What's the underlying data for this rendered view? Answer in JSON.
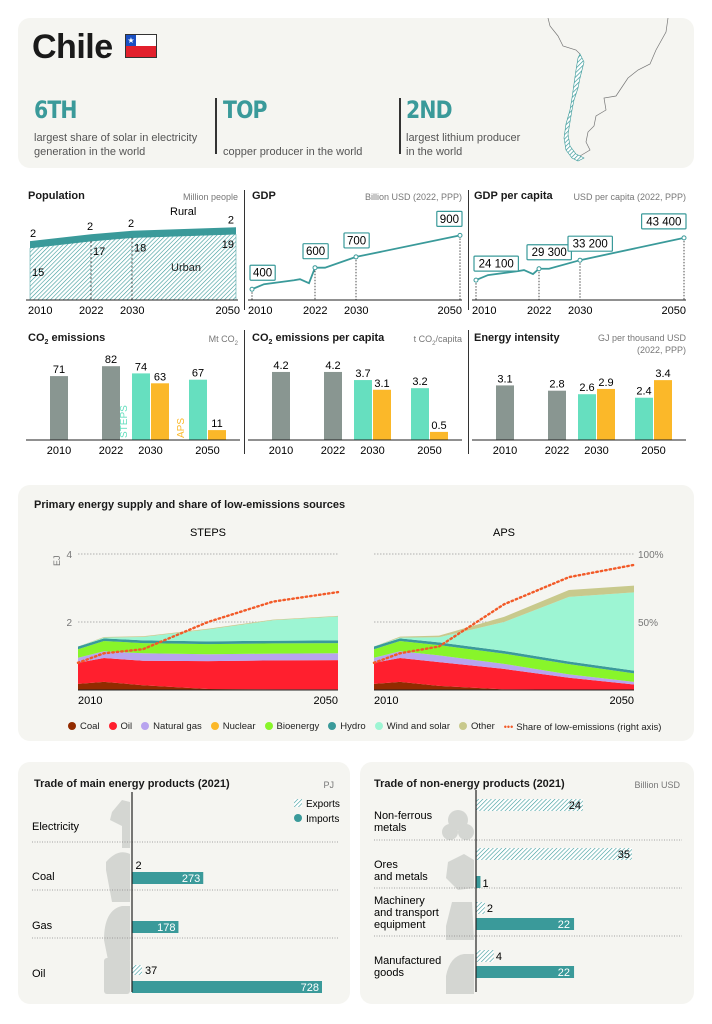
{
  "header": {
    "country": "Chile",
    "flag": "chile-flag",
    "stats": [
      {
        "rank": "6TH",
        "desc_line1": "largest share of solar in electricity",
        "desc_line2": "generation in the world"
      },
      {
        "rank": "TOP",
        "desc_line1": "",
        "desc_line2": "copper producer in the world"
      },
      {
        "rank": "2ND",
        "desc_line1": "largest lithium producer",
        "desc_line2": "in the world"
      }
    ]
  },
  "colors": {
    "teal": "#3a9a9a",
    "grey_bar": "#899691",
    "steps": "#66dfbf",
    "aps": "#fbb829",
    "coal": "#922b00",
    "oil": "#ff1f2e",
    "natural_gas": "#b8a4ef",
    "nuclear": "#fbb829",
    "bioenergy": "#88f52a",
    "hydro": "#3a9a9a",
    "wind_solar": "#9df5d3",
    "other": "#c8c98c",
    "share_line": "#f25a28"
  },
  "chart_data": [
    {
      "id": "population",
      "type": "area",
      "title": "Population",
      "unit": "Million people",
      "x": [
        "2010",
        "2022",
        "2030",
        "2050"
      ],
      "series": [
        {
          "name": "Urban",
          "values": [
            15,
            17,
            18,
            19
          ]
        },
        {
          "name": "Rural",
          "values": [
            2,
            2,
            2,
            2
          ]
        }
      ]
    },
    {
      "id": "gdp",
      "type": "line",
      "title": "GDP",
      "unit": "Billion USD (2022, PPP)",
      "x": [
        "2010",
        "2022",
        "2030",
        "2050"
      ],
      "values": [
        400,
        600,
        700,
        900
      ],
      "labels": [
        "400",
        "600",
        "700",
        "900"
      ]
    },
    {
      "id": "gdp_per_capita",
      "type": "line",
      "title": "GDP per capita",
      "unit": "USD per capita (2022, PPP)",
      "x": [
        "2010",
        "2022",
        "2030",
        "2050"
      ],
      "values": [
        24100,
        29300,
        33200,
        43400
      ],
      "labels": [
        "24 100",
        "29 300",
        "33 200",
        "43 400"
      ]
    },
    {
      "id": "co2",
      "type": "bar",
      "title": "CO2 emissions",
      "unit": "Mt CO2",
      "categories": [
        "2010",
        "2022",
        "2030",
        "2050"
      ],
      "series": [
        {
          "name": "Historical",
          "values": [
            71,
            82,
            null,
            null
          ]
        },
        {
          "name": "STEPS",
          "values": [
            null,
            null,
            74,
            67
          ]
        },
        {
          "name": "APS",
          "values": [
            null,
            null,
            63,
            11
          ]
        }
      ],
      "scenario_labels": [
        "STEPS",
        "APS"
      ]
    },
    {
      "id": "co2_per_capita",
      "type": "bar",
      "title": "CO2 emissions per capita",
      "unit": "t CO2/capita",
      "categories": [
        "2010",
        "2022",
        "2030",
        "2050"
      ],
      "series": [
        {
          "name": "Historical",
          "values": [
            4.2,
            4.2,
            null,
            null
          ]
        },
        {
          "name": "STEPS",
          "values": [
            null,
            null,
            3.7,
            3.2
          ]
        },
        {
          "name": "APS",
          "values": [
            null,
            null,
            3.1,
            0.5
          ]
        }
      ]
    },
    {
      "id": "energy_intensity",
      "type": "bar",
      "title": "Energy intensity",
      "unit_line1": "GJ per thousand USD",
      "unit_line2": "(2022, PPP)",
      "categories": [
        "2010",
        "2022",
        "2030",
        "2050"
      ],
      "series": [
        {
          "name": "Historical",
          "values": [
            3.1,
            2.8,
            null,
            null
          ]
        },
        {
          "name": "STEPS",
          "values": [
            null,
            null,
            2.6,
            2.4
          ]
        },
        {
          "name": "APS",
          "values": [
            null,
            null,
            2.9,
            3.4
          ]
        }
      ]
    },
    {
      "id": "primary_energy",
      "type": "area",
      "title": "Primary energy supply and share of low-emissions sources",
      "ylabel": "EJ",
      "ylim": [
        0,
        4
      ],
      "yticks": [
        "2",
        "4"
      ],
      "right_axis_ticks": [
        "50%",
        "100%"
      ],
      "xticks": [
        "2010",
        "2050"
      ],
      "panels": [
        {
          "name": "STEPS",
          "years": [
            2010,
            2014,
            2020,
            2030,
            2040,
            2050
          ],
          "series": [
            {
              "name": "Coal",
              "values": [
                0.18,
                0.24,
                0.14,
                0.03,
                0.02,
                0.02
              ]
            },
            {
              "name": "Oil",
              "values": [
                0.62,
                0.7,
                0.72,
                0.82,
                0.85,
                0.86
              ]
            },
            {
              "name": "Natural gas",
              "values": [
                0.15,
                0.2,
                0.22,
                0.2,
                0.2,
                0.2
              ]
            },
            {
              "name": "Nuclear",
              "values": [
                0,
                0,
                0,
                0,
                0,
                0
              ]
            },
            {
              "name": "Bioenergy",
              "values": [
                0.25,
                0.3,
                0.3,
                0.3,
                0.3,
                0.3
              ]
            },
            {
              "name": "Hydro",
              "values": [
                0.08,
                0.08,
                0.08,
                0.08,
                0.08,
                0.08
              ]
            },
            {
              "name": "Wind and solar",
              "values": [
                0.0,
                0.02,
                0.1,
                0.35,
                0.6,
                0.7
              ]
            },
            {
              "name": "Other",
              "values": [
                0.0,
                0.02,
                0.02,
                0.02,
                0.02,
                0.02
              ]
            }
          ],
          "share_low_emissions_pct": [
            20,
            27,
            30,
            50,
            65,
            72
          ]
        },
        {
          "name": "APS",
          "years": [
            2010,
            2014,
            2020,
            2030,
            2040,
            2050
          ],
          "series": [
            {
              "name": "Coal",
              "values": [
                0.18,
                0.24,
                0.12,
                0.02,
                0.01,
                0.01
              ]
            },
            {
              "name": "Oil",
              "values": [
                0.62,
                0.7,
                0.7,
                0.6,
                0.35,
                0.15
              ]
            },
            {
              "name": "Natural gas",
              "values": [
                0.15,
                0.2,
                0.2,
                0.15,
                0.1,
                0.08
              ]
            },
            {
              "name": "Nuclear",
              "values": [
                0,
                0,
                0,
                0,
                0,
                0
              ]
            },
            {
              "name": "Bioenergy",
              "values": [
                0.25,
                0.3,
                0.3,
                0.3,
                0.3,
                0.25
              ]
            },
            {
              "name": "Hydro",
              "values": [
                0.08,
                0.08,
                0.08,
                0.08,
                0.08,
                0.08
              ]
            },
            {
              "name": "Wind and solar",
              "values": [
                0.0,
                0.02,
                0.15,
                0.85,
                1.9,
                2.3
              ]
            },
            {
              "name": "Other",
              "values": [
                0.0,
                0.03,
                0.05,
                0.15,
                0.2,
                0.2
              ]
            }
          ],
          "share_low_emissions_pct": [
            20,
            27,
            32,
            63,
            83,
            92
          ]
        }
      ],
      "legend": [
        "Coal",
        "Oil",
        "Natural gas",
        "Nuclear",
        "Bioenergy",
        "Hydro",
        "Wind and solar",
        "Other",
        "Share of low-emissions (right axis)"
      ]
    },
    {
      "id": "trade_energy",
      "type": "bar",
      "title": "Trade of main energy products (2021)",
      "unit": "PJ",
      "legend": [
        "Exports",
        "Imports"
      ],
      "categories": [
        "Electricity",
        "Coal",
        "Gas",
        "Oil"
      ],
      "series": [
        {
          "name": "Exports",
          "values": [
            null,
            2,
            null,
            37
          ]
        },
        {
          "name": "Imports",
          "values": [
            null,
            273,
            178,
            728
          ]
        }
      ]
    },
    {
      "id": "trade_non_energy",
      "type": "bar",
      "title": "Trade of non-energy products (2021)",
      "unit": "Billion USD",
      "categories": [
        "Non-ferrous metals",
        "Ores and metals",
        "Machinery and transport equipment",
        "Manufactured goods"
      ],
      "category_lines": [
        [
          "Non-ferrous",
          "metals"
        ],
        [
          "Ores",
          "and metals"
        ],
        [
          "Machinery",
          "and transport",
          "equipment"
        ],
        [
          "Manufactured",
          "goods"
        ]
      ],
      "series": [
        {
          "name": "Exports",
          "values": [
            24,
            35,
            2,
            4
          ]
        },
        {
          "name": "Imports",
          "values": [
            null,
            1,
            22,
            22
          ]
        }
      ]
    }
  ],
  "labels": {
    "rural": "Rural",
    "urban": "Urban",
    "steps": "STEPS",
    "aps": "APS"
  }
}
